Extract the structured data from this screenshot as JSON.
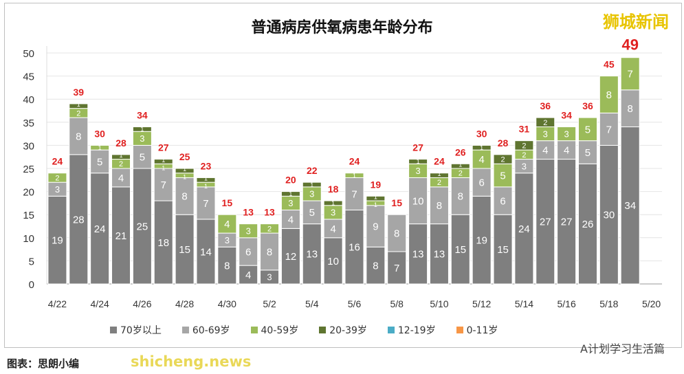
{
  "brand": "狮城新闻",
  "watermark": "shicheng.news",
  "wechat_account": "A计划学习生活篇",
  "credit": "图表：思朗小编",
  "chart_data": {
    "type": "bar",
    "stacked": true,
    "title": "普通病房供氧病患年龄分布",
    "ylim": [
      0,
      50
    ],
    "yticks": [
      0,
      5,
      10,
      15,
      20,
      25,
      30,
      35,
      40,
      45,
      50
    ],
    "grid": true,
    "legend_position": "bottom",
    "categories": [
      "4/22",
      "4/23",
      "4/24",
      "4/25",
      "4/26",
      "4/27",
      "4/28",
      "4/29",
      "4/30",
      "5/1",
      "5/2",
      "5/3",
      "5/4",
      "5/5",
      "5/6",
      "5/7",
      "5/8",
      "5/9",
      "5/10",
      "5/11",
      "5/12",
      "5/13",
      "5/14",
      "5/15",
      "5/16",
      "5/17",
      "5/18",
      "5/19",
      "5/20"
    ],
    "xtick_labels": [
      "4/22",
      "4/24",
      "4/26",
      "4/28",
      "4/30",
      "5/2",
      "5/4",
      "5/6",
      "5/8",
      "5/10",
      "5/12",
      "5/14",
      "5/16",
      "5/18",
      "5/20"
    ],
    "series": [
      {
        "name": "70岁以上",
        "color": "#7f7f7f",
        "values": [
          19,
          28,
          24,
          21,
          25,
          18,
          15,
          14,
          8,
          4,
          3,
          12,
          13,
          10,
          16,
          8,
          7,
          13,
          13,
          15,
          19,
          15,
          24,
          27,
          27,
          26,
          30,
          34,
          null
        ]
      },
      {
        "name": "60-69岁",
        "color": "#a6a6a6",
        "values": [
          3,
          8,
          5,
          4,
          5,
          7,
          8,
          7,
          3,
          6,
          8,
          4,
          5,
          4,
          7,
          9,
          8,
          10,
          8,
          8,
          6,
          6,
          3,
          4,
          4,
          5,
          7,
          8,
          null
        ]
      },
      {
        "name": "40-59岁",
        "color": "#9bbb59",
        "values": [
          2,
          2,
          1,
          2,
          3,
          1,
          1,
          1,
          4,
          3,
          2,
          3,
          3,
          3,
          1,
          1,
          0,
          3,
          2,
          2,
          4,
          5,
          2,
          3,
          3,
          5,
          8,
          7,
          null
        ]
      },
      {
        "name": "20-39岁",
        "color": "#5f7530",
        "values": [
          0,
          1,
          0,
          1,
          1,
          1,
          1,
          1,
          0,
          0,
          0,
          1,
          1,
          1,
          0,
          1,
          0,
          1,
          1,
          1,
          1,
          2,
          2,
          2,
          0,
          0,
          0,
          0,
          null
        ]
      },
      {
        "name": "12-19岁",
        "color": "#4bacc6",
        "values": [
          0,
          0,
          0,
          0,
          0,
          0,
          0,
          0,
          0,
          0,
          0,
          0,
          0,
          0,
          0,
          0,
          0,
          0,
          0,
          0,
          0,
          0,
          0,
          0,
          0,
          0,
          0,
          0,
          null
        ]
      },
      {
        "name": "0-11岁",
        "color": "#f79646",
        "values": [
          0,
          0,
          0,
          0,
          0,
          0,
          0,
          0,
          0,
          0,
          0,
          0,
          0,
          0,
          0,
          0,
          0,
          0,
          0,
          0,
          0,
          0,
          0,
          0,
          0,
          0,
          0,
          0,
          null
        ]
      }
    ],
    "totals": [
      24,
      39,
      30,
      28,
      34,
      27,
      25,
      23,
      15,
      13,
      13,
      20,
      22,
      18,
      24,
      19,
      15,
      27,
      24,
      26,
      30,
      28,
      31,
      36,
      34,
      36,
      45,
      49,
      null
    ],
    "total_label_color": "#e02020"
  }
}
